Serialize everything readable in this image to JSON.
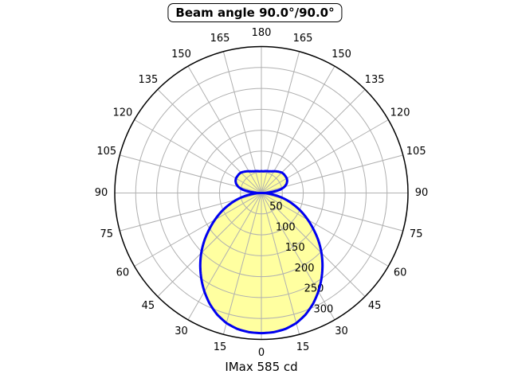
{
  "title": "Beam angle 90.0°/90.0°",
  "footer": "IMax 585 cd",
  "chart_data": {
    "type": "polar-line",
    "title": "Beam angle 90.0°/90.0°",
    "subtitle": "",
    "footer_label": "IMax 585 cd",
    "imax_cd": 585,
    "beam_angle_h_deg": 90.0,
    "beam_angle_v_deg": 90.0,
    "angle_unit": "deg",
    "angle_zero_position": "bottom",
    "angle_tick_step_deg": 15,
    "angle_tick_labels": [
      "0",
      "15",
      "30",
      "45",
      "60",
      "75",
      "90",
      "105",
      "120",
      "135",
      "150",
      "165",
      "180"
    ],
    "r_max": 350,
    "radial_ring_step": 50,
    "radial_tick_labels": [
      "50",
      "100",
      "150",
      "200",
      "250",
      "300"
    ],
    "radial_tick_values": [
      50,
      100,
      150,
      200,
      250,
      300
    ],
    "grid": true,
    "curve_symmetric": true,
    "curve": {
      "angles_deg": [
        0,
        5,
        10,
        15,
        20,
        25,
        30,
        35,
        40,
        45,
        50,
        55,
        60,
        65,
        70,
        75,
        80,
        85,
        90,
        95,
        100,
        105,
        110,
        115,
        120,
        125,
        130,
        135,
        140,
        145,
        150,
        155,
        160,
        165,
        170,
        175,
        180
      ],
      "values": [
        335,
        334,
        330,
        322,
        309,
        292,
        272,
        250,
        227,
        203,
        178,
        152,
        128,
        105,
        82,
        60,
        38,
        17,
        0,
        22,
        45,
        57,
        64,
        68,
        70,
        70,
        70,
        69,
        66,
        63,
        60,
        57,
        55,
        54,
        53,
        52,
        52
      ]
    },
    "colors": {
      "curve": "#0000f0",
      "fill": "#ffffa0",
      "grid": "#b0b0b0",
      "outer_circle": "#000000",
      "text": "#000000",
      "background": "#ffffff"
    }
  }
}
